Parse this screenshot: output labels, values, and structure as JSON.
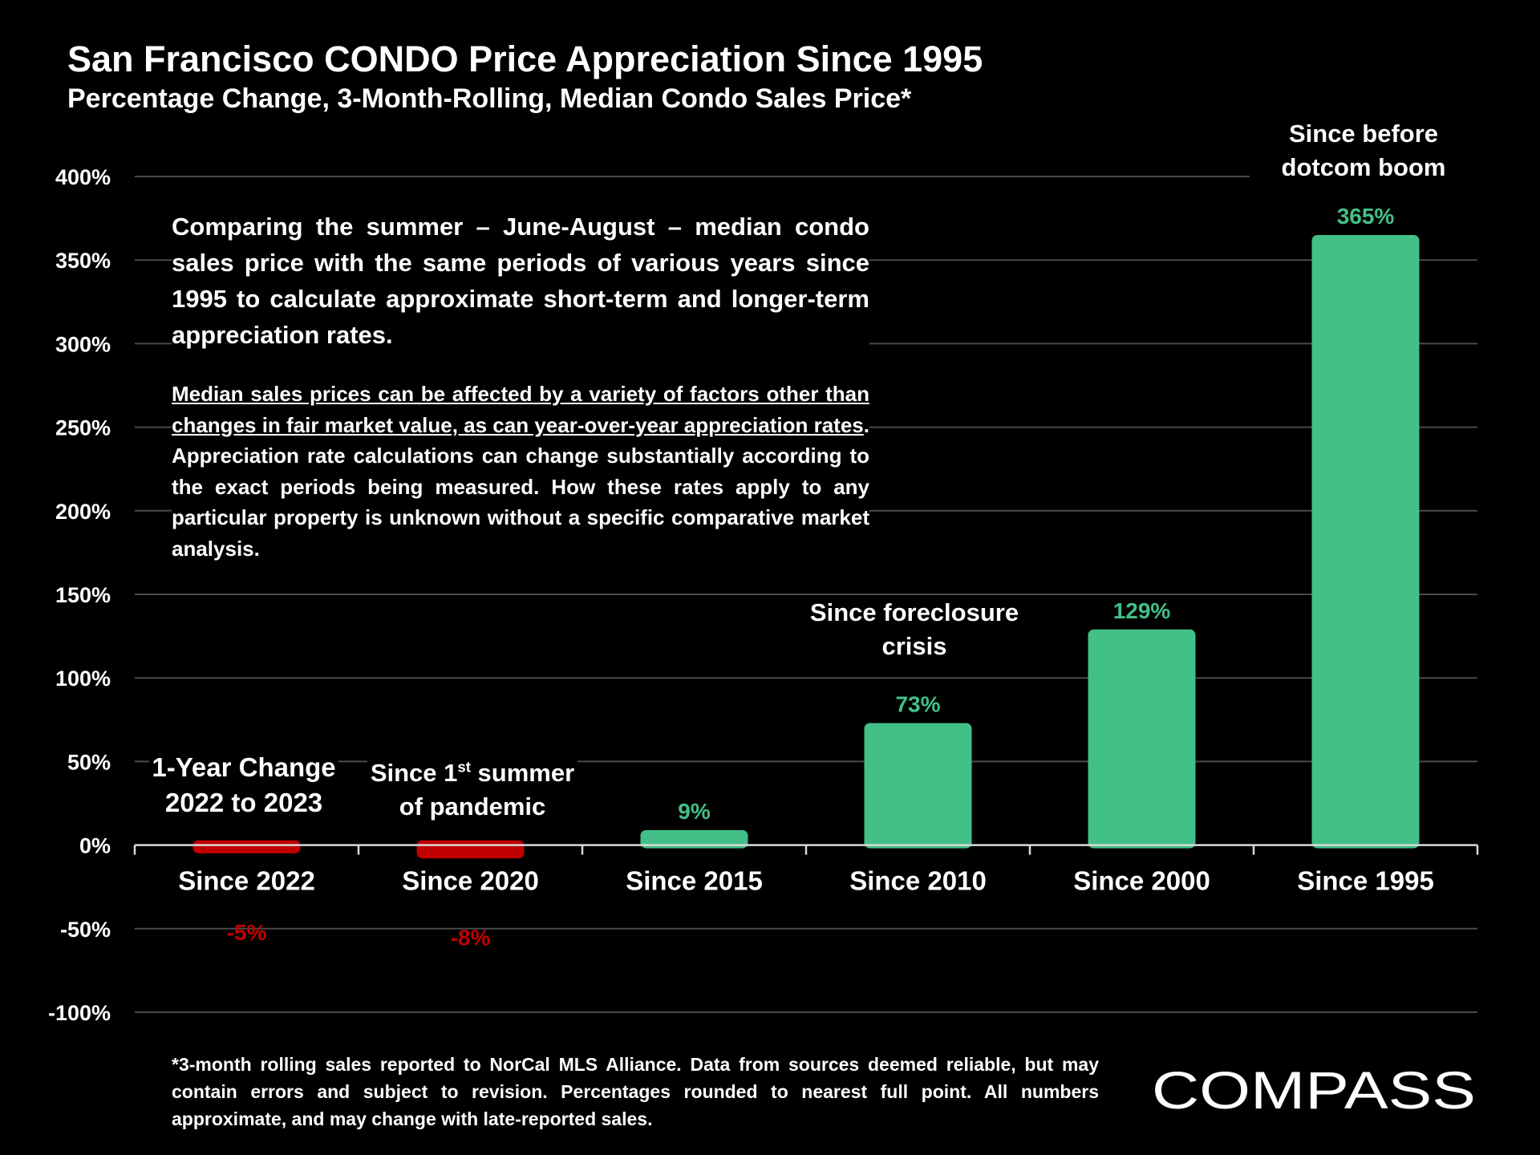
{
  "title": "San Francisco CONDO Price Appreciation Since 1995",
  "subtitle": "Percentage Change, 3-Month-Rolling, Median Condo Sales Price*",
  "description": {
    "paragraph1": "Comparing the summer – June-August – median condo sales price with the same periods of various years since 1995 to calculate approximate short-term and longer-term appreciation rates.",
    "paragraph2_underlined": "Median sales prices can be affected by a variety of factors other than changes in fair market value, as can year-over-year appreciation rates",
    "paragraph2_rest": ". Appreciation rate calculations can change substantially according to the exact periods being measured. How these rates apply to any particular property is unknown without a specific comparative market analysis."
  },
  "annotations": {
    "one_year_line1": "1-Year Change",
    "one_year_line2": "2022 to 2023",
    "pandemic_pre": "Since 1",
    "pandemic_sup": "st",
    "pandemic_post": " summer",
    "pandemic_line2": "of pandemic",
    "foreclosure_line1": "Since foreclosure",
    "foreclosure_line2": "crisis",
    "dotcom_line1": "Since before",
    "dotcom_line2": "dotcom boom"
  },
  "footnote": "*3-month rolling sales reported to NorCal MLS Alliance. Data from sources deemed reliable, but may contain errors and subject to revision. Percentages rounded to nearest full point. All numbers approximate, and may change with late-reported sales.",
  "logo": {
    "text": "COMPASS"
  },
  "colors": {
    "positive": "#42C087",
    "negative": "#C00000",
    "gridline": "#4a4a4a",
    "axis": "#d9d9d9",
    "background": "#000000"
  },
  "chart_data": {
    "type": "bar",
    "title": "San Francisco CONDO Price Appreciation Since 1995",
    "xlabel": "",
    "ylabel": "",
    "ylim": [
      -100,
      400
    ],
    "yticks": [
      400,
      350,
      300,
      250,
      200,
      150,
      100,
      50,
      0,
      -50,
      -100
    ],
    "ytick_labels": [
      "400%",
      "350%",
      "300%",
      "250%",
      "200%",
      "150%",
      "100%",
      "50%",
      "0%",
      "-50%",
      "-100%"
    ],
    "categories": [
      "Since 2022",
      "Since 2020",
      "Since 2015",
      "Since 2010",
      "Since 2000",
      "Since 1995"
    ],
    "values": [
      -5,
      -8,
      9,
      73,
      129,
      365
    ],
    "value_labels": [
      "-5%",
      "-8%",
      "9%",
      "73%",
      "129%",
      "365%"
    ],
    "grid": true,
    "legend": "none"
  }
}
